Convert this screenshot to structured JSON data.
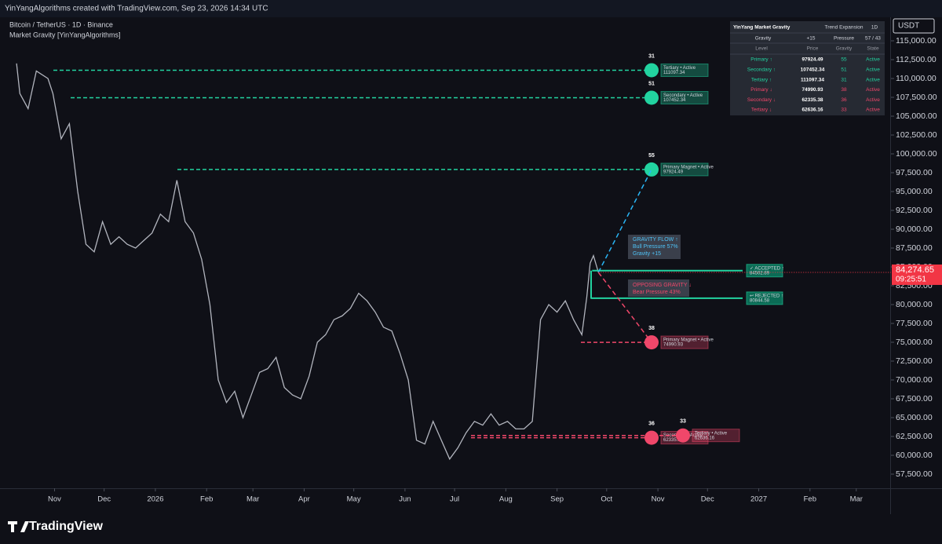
{
  "header": {
    "attribution": "YinYangAlgorithms created with TradingView.com, Sep 23, 2026 14:34 UTC"
  },
  "chart_data": {
    "type": "line",
    "symbol": "Bitcoin / TetherUS · 1D · Binance",
    "indicator": "Market Gravity [YinYangAlgorithms]",
    "currency": "USDT",
    "color": "#b2b5be",
    "x": [
      8,
      10,
      15,
      20,
      27,
      30,
      35,
      40,
      45,
      50,
      55,
      60,
      65,
      70,
      75,
      80,
      85,
      90,
      95,
      100,
      105,
      110,
      115,
      120,
      125,
      130,
      135,
      140,
      145,
      150,
      155,
      160,
      165,
      170,
      175,
      180,
      185,
      190,
      195,
      200,
      205,
      210,
      215,
      220,
      225,
      230,
      235,
      240,
      245,
      250,
      255,
      260,
      265,
      270,
      275,
      280,
      285,
      290,
      295,
      300,
      305,
      310,
      315,
      320,
      325,
      330,
      335,
      340,
      345,
      350,
      353,
      355,
      357,
      360
    ],
    "values": [
      112000,
      108000,
      106000,
      111000,
      110000,
      108000,
      102000,
      104000,
      95000,
      88000,
      87000,
      91000,
      88000,
      89000,
      88000,
      87500,
      88500,
      89500,
      92000,
      91000,
      96500,
      91000,
      89500,
      86000,
      80000,
      70000,
      67000,
      68500,
      65000,
      68000,
      71000,
      71500,
      73000,
      69000,
      68000,
      67500,
      70500,
      75000,
      76000,
      78000,
      78500,
      79500,
      81500,
      80500,
      79000,
      77000,
      76500,
      73500,
      70000,
      62000,
      61500,
      64500,
      62000,
      59500,
      61000,
      63000,
      64500,
      64000,
      65500,
      64000,
      64500,
      63500,
      63500,
      64500,
      78000,
      80000,
      79000,
      80500,
      78000,
      76000,
      81000,
      85500,
      86500,
      84274.65
    ],
    "last_price": {
      "value": 84274.65,
      "label": "84,274.65"
    },
    "countdown": "09:25:51",
    "xlim": [
      -2,
      537
    ],
    "xticks": [
      {
        "value": 31,
        "label": "Nov"
      },
      {
        "value": 61,
        "label": "Dec"
      },
      {
        "value": 92,
        "label": "2026"
      },
      {
        "value": 123,
        "label": "Feb"
      },
      {
        "value": 151,
        "label": "Mar"
      },
      {
        "value": 182,
        "label": "Apr"
      },
      {
        "value": 212,
        "label": "May"
      },
      {
        "value": 243,
        "label": "Jun"
      },
      {
        "value": 273,
        "label": "Jul"
      },
      {
        "value": 304,
        "label": "Aug"
      },
      {
        "value": 335,
        "label": "Sep"
      },
      {
        "value": 365,
        "label": "Oct"
      },
      {
        "value": 396,
        "label": "Nov"
      },
      {
        "value": 426,
        "label": "Dec"
      },
      {
        "value": 457,
        "label": "2027"
      },
      {
        "value": 488,
        "label": "Feb"
      },
      {
        "value": 516,
        "label": "Mar"
      }
    ],
    "ylim": [
      55625,
      118125
    ],
    "yticks": [
      {
        "value": 57500,
        "label": "57,500.00"
      },
      {
        "value": 60000,
        "label": "60,000.00"
      },
      {
        "value": 62500,
        "label": "62,500.00"
      },
      {
        "value": 65000,
        "label": "65,000.00"
      },
      {
        "value": 67500,
        "label": "67,500.00"
      },
      {
        "value": 70000,
        "label": "70,000.00"
      },
      {
        "value": 72500,
        "label": "72,500.00"
      },
      {
        "value": 75000,
        "label": "75,000.00"
      },
      {
        "value": 77500,
        "label": "77,500.00"
      },
      {
        "value": 80000,
        "label": "80,000.00"
      },
      {
        "value": 82500,
        "label": "82,500.00"
      },
      {
        "value": 85000,
        "label": "85,000.00"
      },
      {
        "value": 87500,
        "label": "87,500.00"
      },
      {
        "value": 90000,
        "label": "90,000.00"
      },
      {
        "value": 92500,
        "label": "92,500.00"
      },
      {
        "value": 95000,
        "label": "95,000.00"
      },
      {
        "value": 97500,
        "label": "97,500.00"
      },
      {
        "value": 100000,
        "label": "100,000.00"
      },
      {
        "value": 102500,
        "label": "102,500.00"
      },
      {
        "value": 105000,
        "label": "105,000.00"
      },
      {
        "value": 107500,
        "label": "107,500.00"
      },
      {
        "value": 110000,
        "label": "110,000.00"
      },
      {
        "value": 112500,
        "label": "112,500.00"
      },
      {
        "value": 115000,
        "label": "115,000.00"
      }
    ],
    "levels": [
      {
        "level": "Primary ↑",
        "price": 97924.49,
        "gravity": 55,
        "state": "Active",
        "tag": "Primary Magnet • Active",
        "color": "#22d3a0"
      },
      {
        "level": "Secondary ↑",
        "price": 107452.34,
        "gravity": 51,
        "state": "Active",
        "tag": "Secondary • Active",
        "color": "#22d3a0"
      },
      {
        "level": "Tertiary ↑",
        "price": 111097.34,
        "gravity": 31,
        "state": "Active",
        "tag": "Tertiary • Active",
        "color": "#22d3a0"
      },
      {
        "level": "Primary ↓",
        "price": 74990.93,
        "gravity": 38,
        "state": "Active",
        "tag": "Primary Magnet • Active",
        "color": "#f0476a"
      },
      {
        "level": "Secondary ↓",
        "price": 62335.38,
        "gravity": 36,
        "state": "Active",
        "tag": "Secondary • Active",
        "color": "#f0476a"
      },
      {
        "level": "Tertiary ↓",
        "price": 62636.16,
        "gravity": 33,
        "state": "Active",
        "tag": "Tertiary • Active",
        "color": "#f0476a"
      }
    ],
    "zones": [
      {
        "label": "✓ ACCEPTED ↑",
        "price": 84502.89
      },
      {
        "label": "↩ REJECTED ↑",
        "price": 80844.58
      }
    ],
    "flow": {
      "bull": [
        "GRAVITY FLOW ↑",
        "Bull Pressure 57%",
        "Gravity +15"
      ],
      "bear": [
        "OPPOSING GRAVITY ↓",
        "Bear Pressure 43%"
      ]
    }
  },
  "table": {
    "title": "YinYang Market Gravity",
    "mode": "Trend Expansion",
    "timeframe": "1D",
    "summary": [
      "Gravity",
      "+15",
      "Pressure",
      "57 / 43"
    ],
    "columns": [
      "Level",
      "Price",
      "Gravity",
      "State"
    ]
  },
  "footer": {
    "brand": "TradingView"
  }
}
